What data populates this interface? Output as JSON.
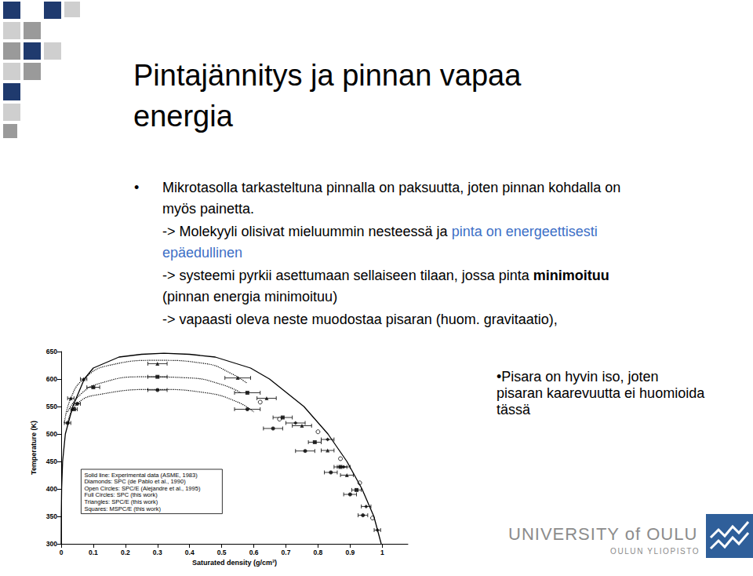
{
  "header": {
    "title": "Pintajännitys ja pinnan vapaa energia"
  },
  "body": [
    {
      "bullet": true,
      "runs": [
        {
          "text": "Mikrotasolla tarkasteltuna pinnalla on paksuutta, joten pinnan kohdalla on myös painetta."
        }
      ]
    },
    {
      "runs": [
        {
          "text": "-> Molekyyli olisivat mieluummin nesteessä ja "
        },
        {
          "text": "pinta on energeettisesti epäedullinen",
          "color": "#3d6fc6"
        }
      ]
    },
    {
      "runs": [
        {
          "text": "-> systeemi pyrkii asettumaan sellaiseen tilaan, jossa pinta "
        },
        {
          "text": "minimoituu",
          "bold": true
        },
        {
          "text": " (pinnan energia minimoituu)"
        }
      ]
    },
    {
      "runs": [
        {
          "text": "-> vapaasti oleva neste muodostaa pisaran (huom. gravitaatio),"
        }
      ]
    }
  ],
  "side_note": {
    "bullet": true,
    "text": "Pisara on hyvin iso, joten pisaran kaarevuutta ei huomioida tässä"
  },
  "footer": {
    "logo": "UNIVERSITY of OULU",
    "logo_subtitle": "OULUN YLIOPISTO"
  },
  "chart_data": {
    "type": "scatter",
    "x_label": "Saturated density (g/cm³)",
    "y_label": "Temperature (K)",
    "xlim": [
      0,
      1.08
    ],
    "ylim": [
      300,
      650
    ],
    "xticks": [
      0,
      0.1,
      0.2,
      0.3,
      0.4,
      0.5,
      0.6,
      0.7,
      0.8,
      0.9,
      1
    ],
    "yticks": [
      300,
      350,
      400,
      450,
      500,
      550,
      600,
      650
    ],
    "grid": false,
    "legend": "lower left",
    "color": "#000000",
    "series": [
      {
        "name": "Solid line: Experimental data (ASME, 1983)",
        "type": "line",
        "marker": "none",
        "line_style": "solid",
        "x": [
          0,
          0.0003,
          0.0014,
          0.0045,
          0.013,
          0.036,
          0.072,
          0.1,
          0.18,
          0.25,
          0.32,
          0.4,
          0.48,
          0.59,
          0.649,
          0.756,
          0.831,
          0.89,
          0.937,
          0.974,
          0.997
        ],
        "y": [
          300,
          350,
          400,
          450,
          500,
          550,
          600,
          620,
          640,
          645,
          647,
          645,
          640,
          620,
          600,
          550,
          500,
          450,
          400,
          350,
          300
        ]
      },
      {
        "name": "Diamonds: SPC (de Pablo et al., 1990)",
        "marker": "diamond",
        "x": [
          0.73,
          0.83,
          0.88,
          0.95,
          0.985
        ],
        "y": [
          520,
          490,
          440,
          368,
          325
        ],
        "xerr": [
          0.03,
          0.02,
          0.02,
          0.015,
          0.01
        ]
      },
      {
        "name": "Open Circles: SPC/E (Alejandre et al., 1995)",
        "marker": "circle_open",
        "x": [
          0.62,
          0.68,
          0.8,
          0.87,
          0.93,
          0.97
        ],
        "y": [
          558,
          527,
          504,
          455,
          411,
          347
        ]
      },
      {
        "name": "Full Circles: SPC (this work)",
        "marker": "circle",
        "line_style": "dotted",
        "x": [
          0.02,
          0.05,
          0.3,
          0.58,
          0.66,
          0.76,
          0.84,
          0.9,
          0.94
        ],
        "y": [
          520,
          555,
          580,
          545,
          510,
          469,
          430,
          390,
          352
        ],
        "xerr": [
          0.01,
          0.01,
          0.03,
          0.04,
          0.03,
          0.03,
          0.02,
          0.02,
          0.015
        ],
        "fit_x": [
          0.02,
          0.05,
          0.12,
          0.3,
          0.45,
          0.55,
          0.6
        ],
        "fit_y": [
          520,
          555,
          572,
          581,
          575,
          558,
          540
        ]
      },
      {
        "name": "Triangles: SPC/E (this work)",
        "marker": "triangle",
        "line_style": "dotted",
        "x": [
          0.03,
          0.07,
          0.3,
          0.55,
          0.64,
          0.75,
          0.83,
          0.89
        ],
        "y": [
          565,
          600,
          628,
          602,
          565,
          515,
          470,
          425
        ],
        "xerr": [
          0.01,
          0.01,
          0.03,
          0.04,
          0.03,
          0.03,
          0.02,
          0.02
        ],
        "fit_x": [
          0.01,
          0.03,
          0.07,
          0.15,
          0.3,
          0.45,
          0.53,
          0.58
        ],
        "fit_y": [
          520,
          565,
          600,
          625,
          634,
          628,
          610,
          592
        ]
      },
      {
        "name": "Squares: MSPC/E (this work)",
        "marker": "square",
        "line_style": "dotted",
        "x": [
          0.04,
          0.1,
          0.3,
          0.58,
          0.69,
          0.79,
          0.87,
          0.92
        ],
        "y": [
          545,
          585,
          604,
          575,
          530,
          485,
          440,
          398
        ],
        "xerr": [
          0.01,
          0.02,
          0.03,
          0.04,
          0.03,
          0.02,
          0.02,
          0.015
        ],
        "fit_x": [
          0.02,
          0.06,
          0.12,
          0.25,
          0.4,
          0.5,
          0.56
        ],
        "fit_y": [
          540,
          572,
          592,
          604,
          602,
          590,
          575
        ]
      }
    ]
  }
}
